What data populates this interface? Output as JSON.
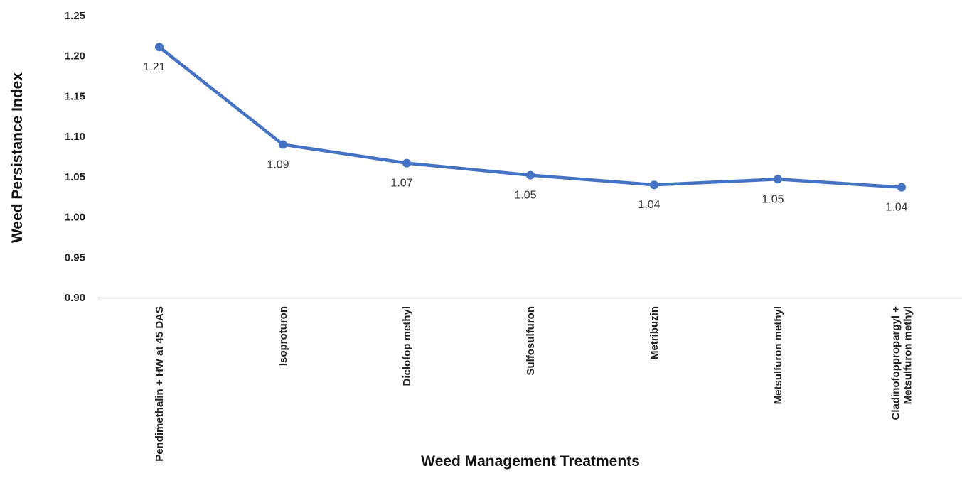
{
  "chart_data": {
    "type": "line",
    "title": "",
    "xlabel": "Weed Management Treatments",
    "ylabel": "Weed Persistance Index",
    "categories": [
      [
        "Pendimethalin + HW at 45 DAS"
      ],
      [
        "Isoproturon"
      ],
      [
        "Diclofop methyl"
      ],
      [
        "Sulfosulfuron"
      ],
      [
        "Metribuzin"
      ],
      [
        "Metsulfuron methyl"
      ],
      [
        "Cladinofoppropargyl +",
        "Metsulfuron methyl"
      ]
    ],
    "series": [
      {
        "values": [
          1.211,
          1.09,
          1.067,
          1.052,
          1.04,
          1.047,
          1.037
        ],
        "labels": [
          "1.21",
          "1.09",
          "1.07",
          "1.05",
          "1.04",
          "1.05",
          "1.04"
        ]
      }
    ],
    "ylim": [
      0.9,
      1.25
    ],
    "yticks": [
      "0.90",
      "0.95",
      "1.00",
      "1.05",
      "1.10",
      "1.15",
      "1.20",
      "1.25"
    ],
    "grid": false,
    "colors": {
      "line": "#4472C4",
      "axis": "#BFBFBF"
    }
  }
}
